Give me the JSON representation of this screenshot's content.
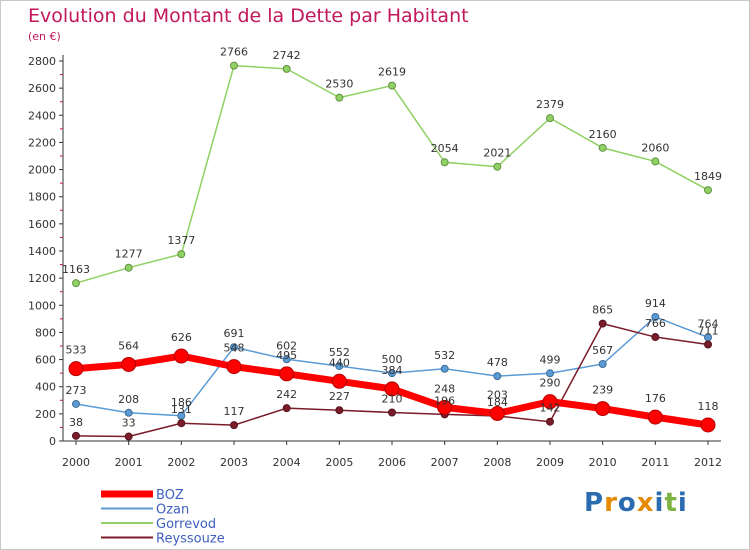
{
  "title": "Evolution du Montant de la Dette par Habitant",
  "subtitle": "(en €)",
  "logo": {
    "text": "Proxiti",
    "colors": [
      "#2b6cb0",
      "#e68a00",
      "#2b6cb0",
      "#e68a00",
      "#2b6cb0",
      "#7cb342",
      "#2b6cb0"
    ]
  },
  "chart_data": {
    "type": "line",
    "x": [
      "2000",
      "2001",
      "2002",
      "2003",
      "2004",
      "2005",
      "2006",
      "2007",
      "2008",
      "2009",
      "2010",
      "2011",
      "2012"
    ],
    "ylim": [
      0,
      2800
    ],
    "yticks": [
      0,
      200,
      400,
      600,
      800,
      1000,
      1200,
      1400,
      1600,
      1800,
      2000,
      2200,
      2400,
      2600,
      2800
    ],
    "grid": false,
    "legend": "bottom-left",
    "series": [
      {
        "name": "BOZ",
        "color": "#ff0000",
        "width": 7,
        "marker": 7,
        "values": [
          533,
          564,
          626,
          548,
          495,
          440,
          384,
          248,
          203,
          290,
          239,
          176,
          118
        ],
        "labels": [
          "533",
          "564",
          "626",
          "548",
          "495",
          "440",
          "384",
          "248",
          "203",
          "290",
          "239",
          "176",
          "118"
        ]
      },
      {
        "name": "Ozan",
        "color": "#5b9bd5",
        "width": 1.5,
        "marker": 3.5,
        "values": [
          273,
          208,
          186,
          691,
          602,
          552,
          500,
          532,
          478,
          499,
          567,
          914,
          764
        ],
        "labels": [
          "273",
          "208",
          "186",
          "691",
          "602",
          "552",
          "500",
          "532",
          "478",
          "499",
          "567",
          "914",
          "764"
        ]
      },
      {
        "name": "Gorrevod",
        "color": "#8fd162",
        "width": 1.5,
        "marker": 3.5,
        "values": [
          1163,
          1277,
          1377,
          2766,
          2742,
          2530,
          2619,
          2054,
          2021,
          2379,
          2160,
          2060,
          1849
        ],
        "labels": [
          "1163",
          "1277",
          "1377",
          "2766",
          "2742",
          "2530",
          "2619",
          "2054",
          "2021",
          "2379",
          "2160",
          "2060",
          "1849"
        ]
      },
      {
        "name": "Reyssouze",
        "color": "#7a1c2a",
        "width": 1.5,
        "marker": 3.5,
        "values": [
          38,
          33,
          131,
          117,
          242,
          227,
          210,
          196,
          184,
          142,
          865,
          766,
          711
        ],
        "labels": [
          "38",
          "33",
          "131",
          "117",
          "242",
          "227",
          "210",
          "196",
          "184",
          "142",
          "865",
          "766",
          "711"
        ]
      }
    ]
  }
}
